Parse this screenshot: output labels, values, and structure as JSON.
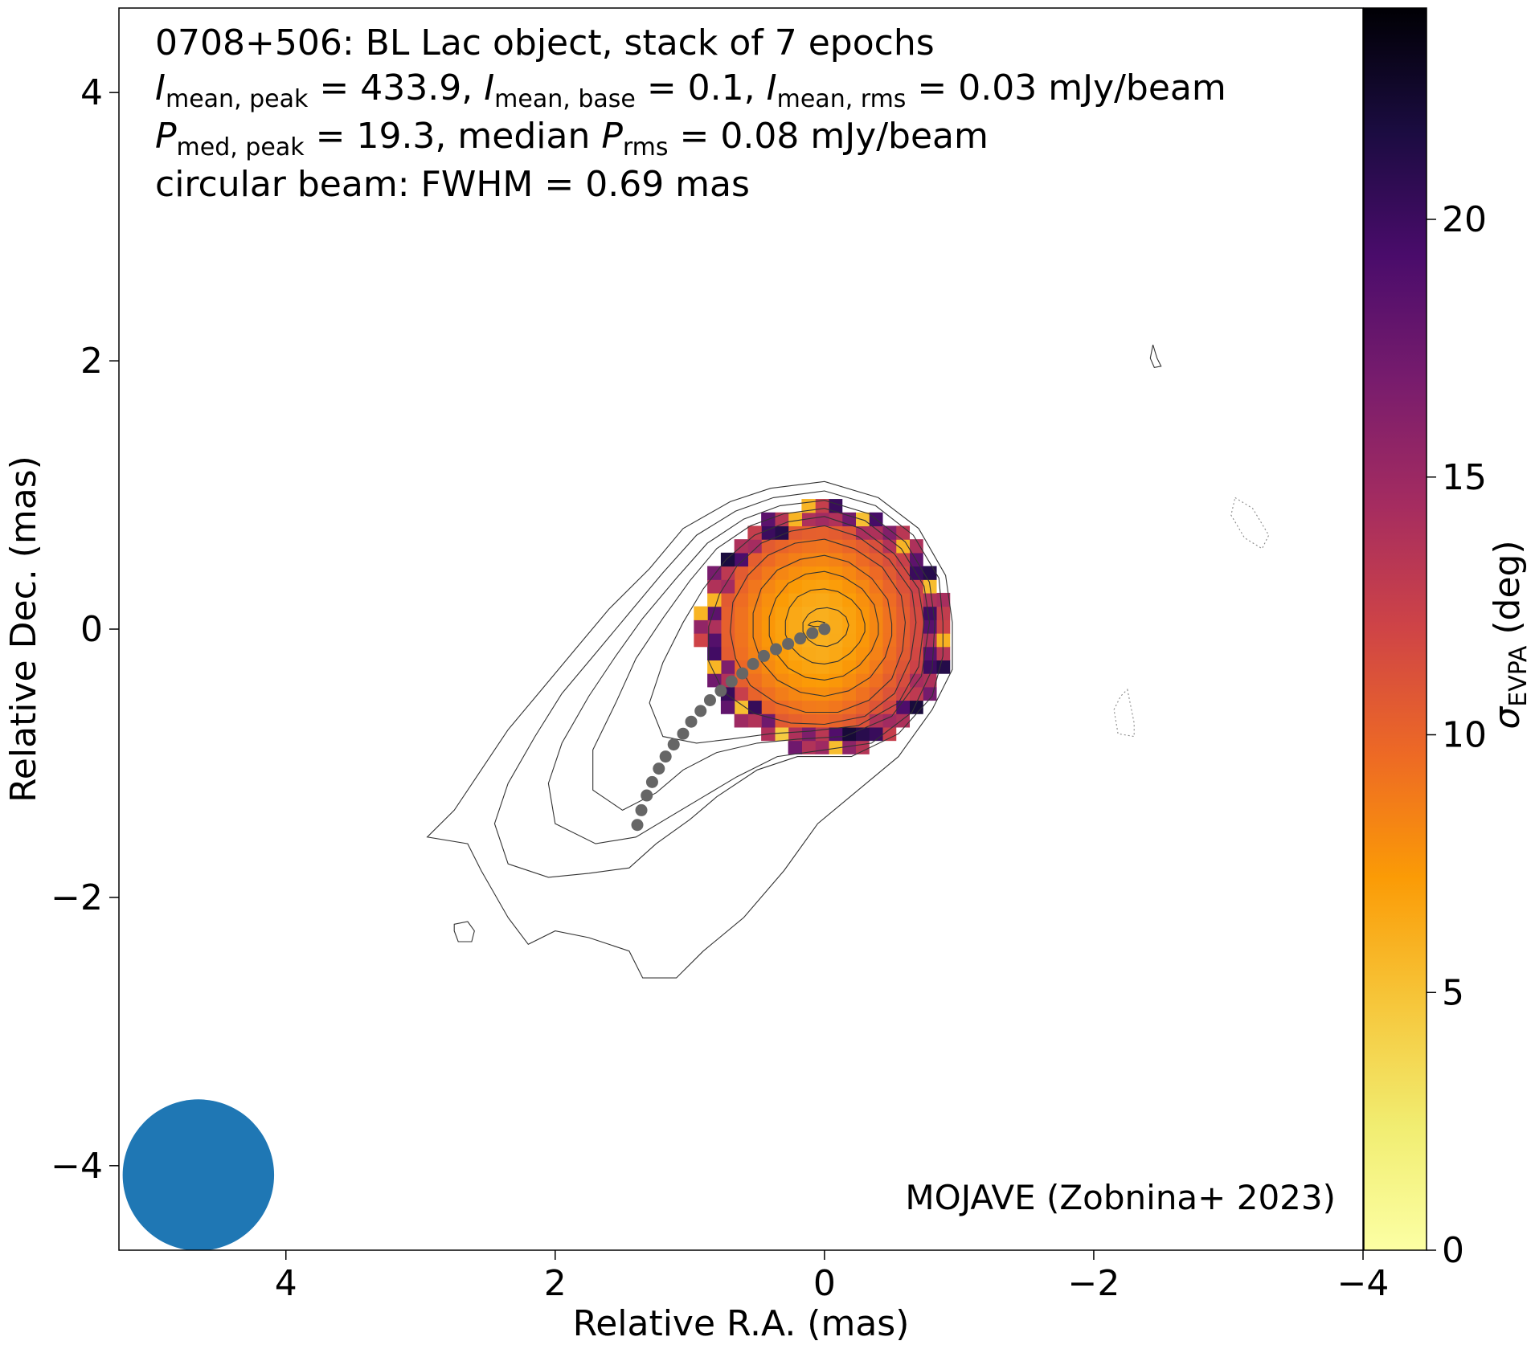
{
  "chart_data": {
    "type": "heatmap",
    "annotation": {
      "line1": "0708+506: BL Lac object, stack of 7 epochs",
      "line2": {
        "i": "I",
        "peak_sub": "mean, peak",
        "peak_val": " = 433.9, ",
        "base_sub": "mean, base",
        "base_val": " = 0.1, ",
        "rms_sub": "mean, rms",
        "rms_val": " = 0.03 mJy/beam"
      },
      "line3": {
        "p": "P",
        "peak_sub": "med, peak",
        "peak_val": " = 19.3, median ",
        "rms_sub": "rms",
        "rms_val": " = 0.08 mJy/beam"
      },
      "line4": "circular beam: FWHM = 0.69 mas"
    },
    "credit": "MOJAVE (Zobnina+ 2023)",
    "xlabel": "Relative R.A. (mas)",
    "ylabel": "Relative Dec. (mas)",
    "xlim": [
      5.24,
      -4.0
    ],
    "ylim": [
      -4.63,
      4.63
    ],
    "x_ticks": [
      4,
      2,
      0,
      -2,
      -4
    ],
    "y_ticks": [
      4,
      2,
      0,
      -2,
      -4
    ],
    "x_tick_labels": [
      "4",
      "2",
      "0",
      "−2",
      "−4"
    ],
    "y_tick_labels": [
      "4",
      "2",
      "0",
      "−2",
      "−4"
    ],
    "colorbar": {
      "label_sigma": "σ",
      "label_sub": "EVPA",
      "label_unit": " (deg)",
      "range": [
        0,
        24.1
      ],
      "ticks": [
        0,
        5,
        10,
        15,
        20
      ],
      "tick_labels": [
        "0",
        "5",
        "10",
        "15",
        "20"
      ],
      "colormap": "inferno_r"
    },
    "beam": {
      "x": 4.65,
      "y": -4.07,
      "fwhm": 0.69,
      "color": "#1f77b4"
    },
    "heatmap_pixels": {
      "center": [
        0,
        0
      ],
      "radius": 0.93,
      "pixel_size": 0.1,
      "value_range": [
        4,
        22
      ],
      "description_values": "sigma_EVPA values in degrees"
    },
    "ridge_line": {
      "color": "#666666",
      "points": [
        [
          0.0,
          0.0
        ],
        [
          0.09,
          -0.03
        ],
        [
          0.18,
          -0.07
        ],
        [
          0.27,
          -0.11
        ],
        [
          0.36,
          -0.15
        ],
        [
          0.45,
          -0.2
        ],
        [
          0.53,
          -0.26
        ],
        [
          0.61,
          -0.33
        ],
        [
          0.69,
          -0.39
        ],
        [
          0.77,
          -0.46
        ],
        [
          0.85,
          -0.53
        ],
        [
          0.92,
          -0.61
        ],
        [
          0.99,
          -0.69
        ],
        [
          1.05,
          -0.78
        ],
        [
          1.12,
          -0.86
        ],
        [
          1.18,
          -0.95
        ],
        [
          1.23,
          -1.04
        ],
        [
          1.28,
          -1.14
        ],
        [
          1.32,
          -1.24
        ],
        [
          1.36,
          -1.35
        ],
        [
          1.39,
          -1.46
        ]
      ]
    },
    "contours": [
      {
        "style": "solid",
        "points": [
          [
            -0.95,
            0.05
          ],
          [
            -0.9,
            0.4
          ],
          [
            -0.7,
            0.75
          ],
          [
            -0.4,
            0.98
          ],
          [
            0.0,
            1.1
          ],
          [
            0.4,
            1.05
          ],
          [
            0.7,
            0.95
          ],
          [
            1.05,
            0.75
          ],
          [
            1.3,
            0.45
          ],
          [
            1.6,
            0.15
          ],
          [
            1.85,
            -0.15
          ],
          [
            2.1,
            -0.45
          ],
          [
            2.35,
            -0.75
          ],
          [
            2.55,
            -1.05
          ],
          [
            2.75,
            -1.35
          ],
          [
            2.95,
            -1.55
          ],
          [
            2.65,
            -1.6
          ],
          [
            2.55,
            -1.8
          ],
          [
            2.35,
            -2.15
          ],
          [
            2.2,
            -2.35
          ],
          [
            2.0,
            -2.25
          ],
          [
            1.75,
            -2.3
          ],
          [
            1.45,
            -2.4
          ],
          [
            1.35,
            -2.6
          ],
          [
            1.1,
            -2.6
          ],
          [
            0.9,
            -2.4
          ],
          [
            0.6,
            -2.15
          ],
          [
            0.3,
            -1.8
          ],
          [
            0.05,
            -1.45
          ],
          [
            -0.25,
            -1.2
          ],
          [
            -0.55,
            -0.95
          ],
          [
            -0.8,
            -0.6
          ],
          [
            -0.95,
            -0.3
          ]
        ]
      },
      {
        "style": "solid",
        "points": [
          [
            -0.88,
            0.05
          ],
          [
            -0.85,
            0.38
          ],
          [
            -0.66,
            0.7
          ],
          [
            -0.38,
            0.92
          ],
          [
            0.0,
            1.03
          ],
          [
            0.38,
            0.98
          ],
          [
            0.66,
            0.88
          ],
          [
            0.95,
            0.7
          ],
          [
            1.2,
            0.42
          ],
          [
            1.45,
            0.12
          ],
          [
            1.7,
            -0.18
          ],
          [
            1.95,
            -0.48
          ],
          [
            2.15,
            -0.8
          ],
          [
            2.35,
            -1.15
          ],
          [
            2.45,
            -1.45
          ],
          [
            2.35,
            -1.75
          ],
          [
            2.05,
            -1.85
          ],
          [
            1.75,
            -1.82
          ],
          [
            1.45,
            -1.78
          ],
          [
            1.25,
            -1.6
          ],
          [
            1.0,
            -1.42
          ],
          [
            0.8,
            -1.25
          ],
          [
            0.5,
            -1.05
          ],
          [
            0.2,
            -0.95
          ],
          [
            -0.2,
            -0.95
          ],
          [
            -0.55,
            -0.78
          ],
          [
            -0.8,
            -0.5
          ],
          [
            -0.88,
            -0.2
          ]
        ]
      },
      {
        "style": "solid",
        "points": [
          [
            -0.82,
            0.05
          ],
          [
            -0.78,
            0.35
          ],
          [
            -0.6,
            0.65
          ],
          [
            -0.33,
            0.86
          ],
          [
            0.0,
            0.96
          ],
          [
            0.33,
            0.92
          ],
          [
            0.6,
            0.82
          ],
          [
            0.87,
            0.64
          ],
          [
            1.1,
            0.38
          ],
          [
            1.35,
            0.08
          ],
          [
            1.55,
            -0.2
          ],
          [
            1.75,
            -0.5
          ],
          [
            1.95,
            -0.85
          ],
          [
            2.05,
            -1.15
          ],
          [
            2.0,
            -1.45
          ],
          [
            1.7,
            -1.6
          ],
          [
            1.4,
            -1.55
          ],
          [
            1.15,
            -1.4
          ],
          [
            0.9,
            -1.25
          ],
          [
            0.65,
            -1.1
          ],
          [
            0.35,
            -0.95
          ],
          [
            0.0,
            -0.9
          ],
          [
            -0.35,
            -0.85
          ],
          [
            -0.65,
            -0.62
          ],
          [
            -0.8,
            -0.3
          ]
        ]
      },
      {
        "style": "solid",
        "points": [
          [
            -0.78,
            0.05
          ],
          [
            -0.74,
            0.32
          ],
          [
            -0.57,
            0.6
          ],
          [
            -0.3,
            0.81
          ],
          [
            0.0,
            0.9
          ],
          [
            0.3,
            0.86
          ],
          [
            0.55,
            0.77
          ],
          [
            0.8,
            0.6
          ],
          [
            1.0,
            0.36
          ],
          [
            1.2,
            0.08
          ],
          [
            1.4,
            -0.22
          ],
          [
            1.55,
            -0.55
          ],
          [
            1.72,
            -0.9
          ],
          [
            1.72,
            -1.2
          ],
          [
            1.5,
            -1.35
          ],
          [
            1.25,
            -1.22
          ],
          [
            1.05,
            -1.05
          ],
          [
            0.8,
            -0.92
          ],
          [
            0.5,
            -0.85
          ],
          [
            0.2,
            -0.82
          ],
          [
            -0.15,
            -0.8
          ],
          [
            -0.5,
            -0.65
          ],
          [
            -0.72,
            -0.35
          ]
        ]
      },
      {
        "style": "solid",
        "points": [
          [
            -0.74,
            0.05
          ],
          [
            -0.7,
            0.3
          ],
          [
            -0.52,
            0.56
          ],
          [
            -0.27,
            0.75
          ],
          [
            0.0,
            0.84
          ],
          [
            0.27,
            0.8
          ],
          [
            0.52,
            0.7
          ],
          [
            0.73,
            0.52
          ],
          [
            0.9,
            0.3
          ],
          [
            1.05,
            0.05
          ],
          [
            1.2,
            -0.25
          ],
          [
            1.3,
            -0.55
          ],
          [
            1.2,
            -0.8
          ],
          [
            0.95,
            -0.85
          ],
          [
            0.7,
            -0.82
          ],
          [
            0.4,
            -0.78
          ],
          [
            0.1,
            -0.76
          ],
          [
            -0.25,
            -0.72
          ],
          [
            -0.55,
            -0.55
          ],
          [
            -0.7,
            -0.28
          ]
        ]
      },
      {
        "style": "solid",
        "points": [
          [
            -0.68,
            0.05
          ],
          [
            -0.65,
            0.28
          ],
          [
            -0.48,
            0.52
          ],
          [
            -0.25,
            0.69
          ],
          [
            0.0,
            0.77
          ],
          [
            0.25,
            0.73
          ],
          [
            0.47,
            0.64
          ],
          [
            0.65,
            0.47
          ],
          [
            0.78,
            0.26
          ],
          [
            0.86,
            0.02
          ],
          [
            0.86,
            -0.24
          ],
          [
            0.75,
            -0.47
          ],
          [
            0.52,
            -0.63
          ],
          [
            0.25,
            -0.7
          ],
          [
            0.0,
            -0.71
          ],
          [
            -0.3,
            -0.65
          ],
          [
            -0.52,
            -0.48
          ],
          [
            -0.64,
            -0.22
          ]
        ]
      },
      {
        "style": "solid",
        "points": [
          [
            -0.6,
            0.05
          ],
          [
            -0.57,
            0.25
          ],
          [
            -0.43,
            0.46
          ],
          [
            -0.22,
            0.6
          ],
          [
            0.0,
            0.67
          ],
          [
            0.22,
            0.64
          ],
          [
            0.42,
            0.55
          ],
          [
            0.57,
            0.4
          ],
          [
            0.68,
            0.2
          ],
          [
            0.7,
            -0.02
          ],
          [
            0.66,
            -0.22
          ],
          [
            0.55,
            -0.42
          ],
          [
            0.36,
            -0.55
          ],
          [
            0.14,
            -0.62
          ],
          [
            -0.1,
            -0.62
          ],
          [
            -0.33,
            -0.53
          ],
          [
            -0.5,
            -0.37
          ],
          [
            -0.58,
            -0.16
          ]
        ]
      },
      {
        "style": "solid",
        "points": [
          [
            -0.5,
            0.04
          ],
          [
            -0.47,
            0.22
          ],
          [
            -0.35,
            0.38
          ],
          [
            -0.18,
            0.5
          ],
          [
            0.0,
            0.55
          ],
          [
            0.18,
            0.52
          ],
          [
            0.35,
            0.44
          ],
          [
            0.47,
            0.3
          ],
          [
            0.53,
            0.12
          ],
          [
            0.53,
            -0.06
          ],
          [
            0.47,
            -0.24
          ],
          [
            0.35,
            -0.38
          ],
          [
            0.18,
            -0.47
          ],
          [
            0.0,
            -0.5
          ],
          [
            -0.18,
            -0.46
          ],
          [
            -0.34,
            -0.36
          ],
          [
            -0.45,
            -0.21
          ],
          [
            -0.5,
            -0.05
          ]
        ]
      },
      {
        "style": "solid",
        "points": [
          [
            -0.4,
            0.04
          ],
          [
            -0.37,
            0.18
          ],
          [
            -0.28,
            0.3
          ],
          [
            -0.14,
            0.39
          ],
          [
            0.0,
            0.43
          ],
          [
            0.14,
            0.41
          ],
          [
            0.27,
            0.34
          ],
          [
            0.36,
            0.23
          ],
          [
            0.41,
            0.09
          ],
          [
            0.41,
            -0.05
          ],
          [
            0.36,
            -0.18
          ],
          [
            0.27,
            -0.29
          ],
          [
            0.14,
            -0.36
          ],
          [
            0.0,
            -0.38
          ],
          [
            -0.14,
            -0.35
          ],
          [
            -0.26,
            -0.27
          ],
          [
            -0.35,
            -0.16
          ],
          [
            -0.4,
            -0.04
          ]
        ]
      },
      {
        "style": "solid",
        "points": [
          [
            -0.3,
            0.04
          ],
          [
            -0.27,
            0.14
          ],
          [
            -0.2,
            0.22
          ],
          [
            -0.1,
            0.28
          ],
          [
            0.0,
            0.3
          ],
          [
            0.1,
            0.29
          ],
          [
            0.2,
            0.24
          ],
          [
            0.26,
            0.16
          ],
          [
            0.29,
            0.06
          ],
          [
            0.29,
            -0.04
          ],
          [
            0.25,
            -0.13
          ],
          [
            0.18,
            -0.2
          ],
          [
            0.09,
            -0.25
          ],
          [
            0.0,
            -0.26
          ],
          [
            -0.1,
            -0.24
          ],
          [
            -0.19,
            -0.18
          ],
          [
            -0.26,
            -0.1
          ],
          [
            -0.3,
            -0.02
          ]
        ]
      },
      {
        "style": "solid",
        "points": [
          [
            -0.18,
            0.03
          ],
          [
            -0.16,
            0.09
          ],
          [
            -0.1,
            0.14
          ],
          [
            -0.02,
            0.16
          ],
          [
            0.06,
            0.15
          ],
          [
            0.12,
            0.11
          ],
          [
            0.16,
            0.05
          ],
          [
            0.16,
            -0.02
          ],
          [
            0.12,
            -0.08
          ],
          [
            0.06,
            -0.12
          ],
          [
            -0.02,
            -0.13
          ],
          [
            -0.1,
            -0.1
          ],
          [
            -0.16,
            -0.04
          ]
        ]
      },
      {
        "style": "solid",
        "points": [
          [
            0.0,
            0.05
          ],
          [
            0.05,
            0.06
          ],
          [
            0.1,
            0.05
          ],
          [
            0.12,
            0.03
          ],
          [
            0.08,
            0.02
          ],
          [
            0.02,
            0.02
          ]
        ]
      },
      {
        "style": "solid",
        "points": [
          [
            -2.44,
            2.12
          ],
          [
            -2.47,
            2.02
          ],
          [
            -2.5,
            1.96
          ],
          [
            -2.45,
            1.95
          ],
          [
            -2.42,
            2.02
          ]
        ]
      },
      {
        "style": "solid",
        "points": [
          [
            2.75,
            -2.2
          ],
          [
            2.65,
            -2.18
          ],
          [
            2.6,
            -2.25
          ],
          [
            2.62,
            -2.33
          ],
          [
            2.72,
            -2.33
          ],
          [
            2.75,
            -2.25
          ]
        ]
      },
      {
        "style": "dotted",
        "points": [
          [
            -3.05,
            0.98
          ],
          [
            -3.18,
            0.9
          ],
          [
            -3.3,
            0.7
          ],
          [
            -3.25,
            0.6
          ],
          [
            -3.12,
            0.68
          ],
          [
            -3.02,
            0.85
          ]
        ]
      },
      {
        "style": "dotted",
        "points": [
          [
            -2.25,
            -0.45
          ],
          [
            -2.3,
            -0.7
          ],
          [
            -2.3,
            -0.8
          ],
          [
            -2.18,
            -0.78
          ],
          [
            -2.15,
            -0.6
          ],
          [
            -2.2,
            -0.5
          ]
        ]
      }
    ]
  }
}
